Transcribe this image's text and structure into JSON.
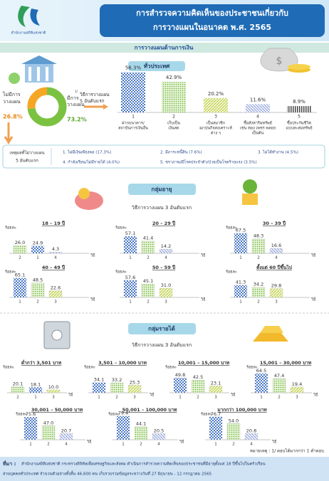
{
  "header": {
    "org": "สำนักงานสถิติแห่งชาติ",
    "title_lines": [
      "การสำรวจความคิดเห็นของประชาชนเกี่ยวกับ",
      "การวางแผนในอนาคต พ.ศ. 2565"
    ]
  },
  "section_title": "การวางแผนด้านการเงิน",
  "footnote_mark": "1/",
  "axis": {
    "unit": "ร้อยละ",
    "x_label": "วิธี"
  },
  "overall": {
    "no_plan": {
      "label_lines": [
        "ไม่มีการ",
        "วางแผน"
      ],
      "value": 26.8,
      "value_label": "26.8%"
    },
    "plan": {
      "label_lines": [
        "มีการ",
        "วางแผน"
      ],
      "value": 73.2,
      "value_label": "73.2%"
    },
    "caption_lines": [
      "วิธีการวางแผน",
      "5 อันดับแรก"
    ],
    "heading": "ทั่วประเทศ",
    "methods": {
      "ranks": [
        "1",
        "2",
        "3",
        "4",
        "5"
      ],
      "names": [
        [
          "ฝากธนาคาร/",
          "สถาบันการเงินอื่น"
        ],
        [
          "เก็บเป็น",
          "เงินสด"
        ],
        [
          "เป็นสมาชิก",
          "ฌาปนกิจสงเคราะห์",
          "ต่าง ๆ"
        ],
        [
          "ซื้อสังหาริมทรัพย์",
          "เช่น ทอง เพชร พลอย",
          "เป็นต้น"
        ],
        [
          "ซื้อประกันชีวิต",
          "แบบสะสมทรัพย์"
        ]
      ],
      "values": [
        56.3,
        42.9,
        20.2,
        11.6,
        8.9
      ],
      "value_labels": [
        "56.3%",
        "42.9%",
        "20.2%",
        "11.6%",
        "8.9%"
      ]
    }
  },
  "reasons": {
    "heading_lines": [
      "เหตุผลที่ไม่วางแผน",
      "5 อันดับแรก"
    ],
    "items": [
      "1. ไม่มีเงินเพียงพอ (17.3%)",
      "2. มีภาระหนี้สิน (7.6%)",
      "3. ไม่ได้ทำงาน (4.5%)",
      "4. กำลังเรียน/ไม่มีรายได้ (4.0%)",
      "5. ชราภาพ/มีโรคประจำตัว/ป่วยเป็นโรคร้ายแรง (3.5%)"
    ]
  },
  "age": {
    "heading": "กลุ่มอายุ",
    "caption": "วิธีการวางแผน 3 อันดับแรก",
    "groups": [
      {
        "name": "18 – 19 ปี",
        "methods": [
          "2",
          "1",
          "4"
        ],
        "values": [
          26.0,
          24.9,
          4.3
        ],
        "value_labels": [
          "26.0",
          "24.9",
          "4.3"
        ]
      },
      {
        "name": "20 – 29 ปี",
        "methods": [
          "1",
          "2",
          "4"
        ],
        "values": [
          57.1,
          41.4,
          14.2
        ],
        "value_labels": [
          "57.1",
          "41.4",
          "14.2"
        ]
      },
      {
        "name": "30 – 39 ปี",
        "methods": [
          "1",
          "2",
          "4"
        ],
        "values": [
          67.5,
          48.3,
          16.6
        ],
        "value_labels": [
          "67.5",
          "48.3",
          "16.6"
        ]
      },
      {
        "name": "40 – 49 ปี",
        "methods": [
          "1",
          "2",
          "3"
        ],
        "values": [
          65.1,
          48.5,
          22.6
        ],
        "value_labels": [
          "65.1",
          "48.5",
          "22.6"
        ]
      },
      {
        "name": "50 – 59 ปี",
        "methods": [
          "1",
          "2",
          "3"
        ],
        "values": [
          57.6,
          45.1,
          31.0
        ],
        "value_labels": [
          "57.6",
          "45.1",
          "31.0"
        ]
      },
      {
        "name": "ตั้งแต่ 60 ปีขึ้นไป",
        "methods": [
          "1",
          "2",
          "3"
        ],
        "values": [
          41.3,
          34.2,
          29.8
        ],
        "value_labels": [
          "41.3",
          "34.2",
          "29.8"
        ]
      }
    ]
  },
  "income": {
    "heading": "กลุ่มรายได้",
    "caption": "วิธีการวางแผน 3 อันดับแรก",
    "groups": [
      {
        "name": "ต่ำกว่า 3,501 บาท",
        "methods": [
          "2",
          "1",
          "3"
        ],
        "values": [
          20.1,
          18.1,
          10.0
        ],
        "value_labels": [
          "20.1",
          "18.1",
          "10.0"
        ]
      },
      {
        "name": "3,501 – 10,000 บาท",
        "methods": [
          "1",
          "2",
          "3"
        ],
        "values": [
          34.1,
          33.2,
          25.3
        ],
        "value_labels": [
          "34.1",
          "33.2",
          "25.3"
        ]
      },
      {
        "name": "10,001 – 15,000 บาท",
        "methods": [
          "1",
          "2",
          "3"
        ],
        "values": [
          49.8,
          42.5,
          23.1
        ],
        "value_labels": [
          "49.8",
          "42.5",
          "23.1"
        ]
      },
      {
        "name": "15,001 – 30,000 บาท",
        "methods": [
          "1",
          "2",
          "3"
        ],
        "values": [
          64.5,
          47.4,
          19.4
        ],
        "value_labels": [
          "64.5",
          "47.4",
          "19.4"
        ]
      },
      {
        "name": "30,001 – 50,000 บาท",
        "methods": [
          "1",
          "2",
          "4"
        ],
        "values": [
          75.6,
          47.0,
          20.7
        ],
        "value_labels": [
          "75.6",
          "47.0",
          "20.7"
        ]
      },
      {
        "name": "50,001 – 100,000 บาท",
        "methods": [
          "1",
          "2",
          "4"
        ],
        "values": [
          79.4,
          44.1,
          20.5
        ],
        "value_labels": [
          "79.4",
          "44.1",
          "20.5"
        ]
      },
      {
        "name": "มากกว่า 100,000 บาท",
        "methods": [
          "1",
          "2",
          "4"
        ],
        "values": [
          76.7,
          54.0,
          20.8
        ],
        "value_labels": [
          "76.7",
          "54.0",
          "20.8"
        ]
      }
    ]
  },
  "note": "หมายเหตุ : 1/ ตอบได้มากกว่า 1 คำตอบ",
  "source": {
    "label": "ที่มา :",
    "lines": [
      "สำนักงานสถิติแห่งชาติ กระทรวงดิจิทัลเพื่อเศรษฐกิจและสังคม ดำเนินการสำรวจความคิดเห็นของประชาชนที่มีอายุตั้งแต่ 18 ปีขึ้นไปในครัวเรือน",
      "ส่วนบุคคลทั่วประเทศ จำนวนตัวอย่างทั้งสิ้น 46,600 คน เก็บรวบรวมข้อมูลระหว่างวันที่ 27 มิถุนายน - 12 กรกฎาคม 2565"
    ]
  }
}
